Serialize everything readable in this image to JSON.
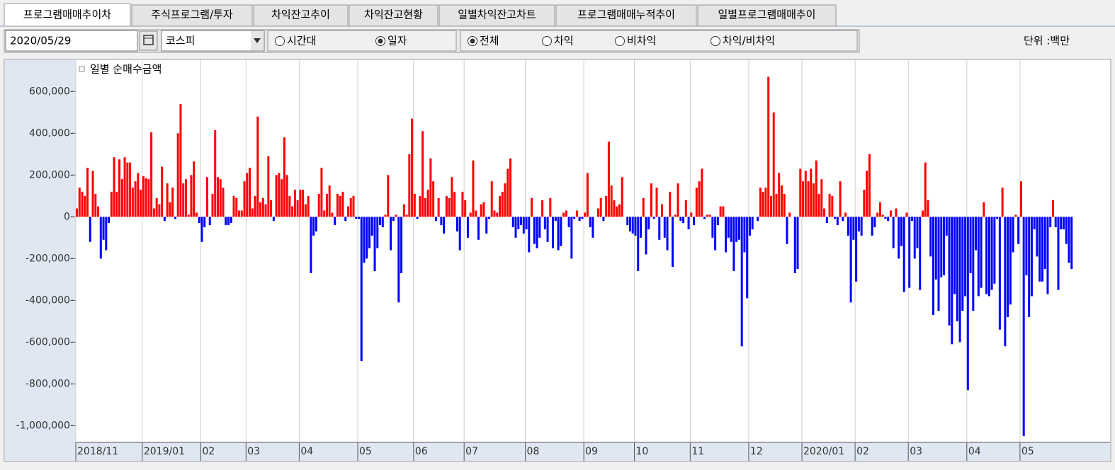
{
  "tabs": [
    "프로그램매매추이차",
    "주식프로그램/투자",
    "차익잔고추이",
    "차익잔고현황",
    "일별차익잔고차트",
    "프로그램매매누적추이",
    "일별프로그램매매추이"
  ],
  "active_tab": 0,
  "date": "2020/05/29",
  "market": "코스피",
  "radio_groups": [
    {
      "options": [
        "시간대",
        "일자"
      ],
      "selected": 1
    },
    {
      "options": [
        "전체",
        "차익",
        "비차익",
        "차익/비차익"
      ],
      "selected": 0
    }
  ],
  "unit": "단위 :백만",
  "chart_data": {
    "type": "bar",
    "legend": "일별 순매수금액",
    "legend_color": "#ff0000",
    "color": "#ff0000",
    "negative_color": "#0000ff",
    "ylim": [
      -1080000,
      750000
    ],
    "yticks": [
      {
        "value": 600000,
        "label": "600,000-"
      },
      {
        "value": 400000,
        "label": "400,000-"
      },
      {
        "value": 200000,
        "label": "200,000-"
      },
      {
        "value": 0,
        "label": "0-"
      },
      {
        "value": -200000,
        "label": "-200,000-"
      },
      {
        "value": -400000,
        "label": "-400,000-"
      },
      {
        "value": -600000,
        "label": "-600,000-"
      },
      {
        "value": -800000,
        "label": "-800,000-"
      },
      {
        "value": -1000000,
        "label": "-1,000,000-"
      }
    ],
    "xticks": [
      {
        "value": 0,
        "label": "2018/11"
      },
      {
        "value": 25,
        "label": "2019/01"
      },
      {
        "value": 47,
        "label": "02"
      },
      {
        "value": 64,
        "label": "03"
      },
      {
        "value": 84,
        "label": "04"
      },
      {
        "value": 106,
        "label": "05"
      },
      {
        "value": 127,
        "label": "06"
      },
      {
        "value": 146,
        "label": "07"
      },
      {
        "value": 169,
        "label": "08"
      },
      {
        "value": 191,
        "label": "09"
      },
      {
        "value": 210,
        "label": "10"
      },
      {
        "value": 231,
        "label": "11"
      },
      {
        "value": 253,
        "label": "12"
      },
      {
        "value": 273,
        "label": "2020/01"
      },
      {
        "value": 293,
        "label": "02"
      },
      {
        "value": 313,
        "label": "03"
      },
      {
        "value": 335,
        "label": "04"
      },
      {
        "value": 355,
        "label": "05"
      }
    ],
    "xlim": [
      0,
      375
    ],
    "grid": true,
    "values": [
      40000,
      140000,
      120000,
      100000,
      235000,
      -120000,
      220000,
      110000,
      50000,
      -200000,
      -110000,
      -160000,
      -30000,
      120000,
      285000,
      120000,
      275000,
      180000,
      285000,
      260000,
      260000,
      140000,
      170000,
      210000,
      130000,
      195000,
      185000,
      180000,
      405000,
      40000,
      90000,
      60000,
      240000,
      -20000,
      160000,
      70000,
      140000,
      -10000,
      400000,
      540000,
      160000,
      180000,
      10000,
      200000,
      265000,
      20000,
      -30000,
      -120000,
      -50000,
      190000,
      -40000,
      110000,
      415000,
      190000,
      180000,
      140000,
      -40000,
      -40000,
      -30000,
      100000,
      90000,
      30000,
      30000,
      170000,
      210000,
      235000,
      40000,
      100000,
      480000,
      70000,
      90000,
      60000,
      290000,
      80000,
      -20000,
      200000,
      210000,
      180000,
      380000,
      200000,
      100000,
      50000,
      130000,
      80000,
      130000,
      130000,
      60000,
      100000,
      -270000,
      -90000,
      -70000,
      110000,
      235000,
      30000,
      110000,
      150000,
      20000,
      -40000,
      110000,
      100000,
      120000,
      -20000,
      50000,
      90000,
      100000,
      -10000,
      -10000,
      -690000,
      -220000,
      -200000,
      -150000,
      -90000,
      -260000,
      -150000,
      -40000,
      -50000,
      10000,
      200000,
      -160000,
      -20000,
      10000,
      -410000,
      -270000,
      60000,
      10000,
      300000,
      470000,
      110000,
      -10000,
      100000,
      410000,
      90000,
      130000,
      280000,
      170000,
      -20000,
      90000,
      -40000,
      -80000,
      100000,
      90000,
      190000,
      120000,
      -70000,
      -160000,
      120000,
      80000,
      -100000,
      20000,
      270000,
      30000,
      -110000,
      60000,
      70000,
      -80000,
      -10000,
      170000,
      30000,
      20000,
      100000,
      120000,
      160000,
      230000,
      280000,
      -50000,
      -100000,
      -60000,
      -40000,
      -80000,
      -60000,
      -170000,
      90000,
      -130000,
      -150000,
      -100000,
      80000,
      -60000,
      -120000,
      90000,
      -150000,
      -20000,
      -160000,
      -140000,
      20000,
      30000,
      -50000,
      -200000,
      -10000,
      30000,
      -20000,
      -10000,
      20000,
      210000,
      -50000,
      -100000,
      0,
      40000,
      90000,
      -20000,
      100000,
      360000,
      150000,
      80000,
      50000,
      60000,
      190000,
      0,
      -40000,
      -70000,
      -80000,
      -90000,
      -260000,
      -100000,
      90000,
      -180000,
      -60000,
      160000,
      -10000,
      140000,
      -110000,
      60000,
      -100000,
      -160000,
      120000,
      -240000,
      10000,
      160000,
      -20000,
      -30000,
      80000,
      -60000,
      20000,
      -40000,
      140000,
      170000,
      230000,
      -10000,
      10000,
      10000,
      -100000,
      -160000,
      -40000,
      50000,
      50000,
      -170000,
      -100000,
      -120000,
      -260000,
      -120000,
      -110000,
      -620000,
      -170000,
      -390000,
      -90000,
      -60000,
      0,
      -20000,
      140000,
      120000,
      140000,
      670000,
      100000,
      500000,
      110000,
      210000,
      150000,
      110000,
      -130000,
      20000,
      0,
      -270000,
      -250000,
      230000,
      170000,
      220000,
      170000,
      230000,
      160000,
      270000,
      110000,
      180000,
      40000,
      -30000,
      110000,
      100000,
      -10000,
      -40000,
      170000,
      -20000,
      20000,
      -90000,
      -410000,
      -110000,
      -310000,
      -70000,
      -90000,
      130000,
      220000,
      300000,
      -90000,
      -50000,
      20000,
      70000,
      10000,
      -10000,
      -20000,
      30000,
      -150000,
      40000,
      -200000,
      -140000,
      -360000,
      20000,
      -340000,
      -20000,
      -200000,
      -150000,
      -350000,
      30000,
      260000,
      80000,
      -190000,
      -470000,
      -300000,
      -450000,
      -290000,
      -280000,
      -90000,
      -520000,
      -610000,
      -370000,
      -500000,
      -600000,
      -450000,
      -380000,
      -830000,
      -270000,
      -450000,
      -160000,
      -380000,
      -340000,
      70000,
      -370000,
      -380000,
      -350000,
      -320000,
      -10000,
      -540000,
      140000,
      -620000,
      -480000,
      -420000,
      -170000,
      10000,
      -130000,
      170000,
      -1050000,
      -280000,
      -480000,
      -380000,
      -60000,
      -190000,
      -310000,
      -310000,
      -250000,
      -370000,
      -50000,
      80000,
      -50000,
      -350000,
      -60000,
      -60000,
      -130000,
      -220000,
      -250000
    ]
  }
}
